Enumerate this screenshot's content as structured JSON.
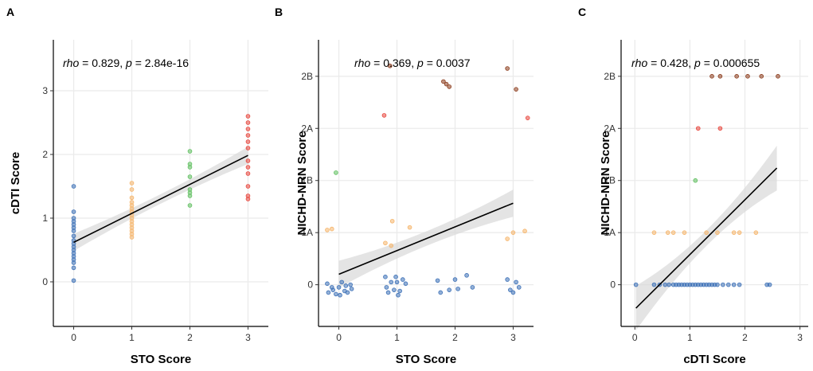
{
  "chart_data": [
    {
      "type": "scatter",
      "panel": "A",
      "xlabel": "STO Score",
      "ylabel": "cDTI Score",
      "xlim": [
        -0.35,
        3.35
      ],
      "ylim": [
        -0.7,
        3.8
      ],
      "xticks": [
        {
          "v": 0,
          "label": "0"
        },
        {
          "v": 1,
          "label": "1"
        },
        {
          "v": 2,
          "label": "2"
        },
        {
          "v": 3,
          "label": "3"
        }
      ],
      "yticks": [
        {
          "v": 0,
          "label": "0"
        },
        {
          "v": 1,
          "label": "1"
        },
        {
          "v": 2,
          "label": "2"
        },
        {
          "v": 3,
          "label": "3"
        }
      ],
      "annotation": {
        "rho_label": "rho",
        "rho_text": " = 0.829, ",
        "p_label": "p",
        "p_text": " = 2.84e-16"
      },
      "fit": {
        "intercept": 0.62,
        "slope": 0.455,
        "x_range": [
          0,
          3
        ],
        "ci_base": 0.075,
        "ci_spread": 0.06
      },
      "points": [
        {
          "x": 0,
          "y": 1.5,
          "c": "blue"
        },
        {
          "x": 0,
          "y": 1.1,
          "c": "blue"
        },
        {
          "x": 0,
          "y": 1.0,
          "c": "blue"
        },
        {
          "x": 0,
          "y": 0.95,
          "c": "blue"
        },
        {
          "x": 0,
          "y": 0.9,
          "c": "blue"
        },
        {
          "x": 0,
          "y": 0.85,
          "c": "blue"
        },
        {
          "x": 0,
          "y": 0.8,
          "c": "blue"
        },
        {
          "x": 0,
          "y": 0.72,
          "c": "blue"
        },
        {
          "x": 0,
          "y": 0.65,
          "c": "blue"
        },
        {
          "x": 0,
          "y": 0.6,
          "c": "blue"
        },
        {
          "x": 0,
          "y": 0.55,
          "c": "blue"
        },
        {
          "x": 0,
          "y": 0.5,
          "c": "blue"
        },
        {
          "x": 0,
          "y": 0.45,
          "c": "blue"
        },
        {
          "x": 0,
          "y": 0.4,
          "c": "blue"
        },
        {
          "x": 0,
          "y": 0.35,
          "c": "blue"
        },
        {
          "x": 0,
          "y": 0.3,
          "c": "blue"
        },
        {
          "x": 0,
          "y": 0.22,
          "c": "blue"
        },
        {
          "x": 0,
          "y": 0.02,
          "c": "blue"
        },
        {
          "x": 1,
          "y": 1.55,
          "c": "orange"
        },
        {
          "x": 1,
          "y": 1.45,
          "c": "orange"
        },
        {
          "x": 1,
          "y": 1.32,
          "c": "orange"
        },
        {
          "x": 1,
          "y": 1.25,
          "c": "orange"
        },
        {
          "x": 1,
          "y": 1.2,
          "c": "orange"
        },
        {
          "x": 1,
          "y": 1.15,
          "c": "orange"
        },
        {
          "x": 1,
          "y": 1.1,
          "c": "orange"
        },
        {
          "x": 1,
          "y": 1.05,
          "c": "orange"
        },
        {
          "x": 1,
          "y": 1.0,
          "c": "orange"
        },
        {
          "x": 1,
          "y": 0.95,
          "c": "orange"
        },
        {
          "x": 1,
          "y": 0.9,
          "c": "orange"
        },
        {
          "x": 1,
          "y": 0.85,
          "c": "orange"
        },
        {
          "x": 1,
          "y": 0.8,
          "c": "orange"
        },
        {
          "x": 1,
          "y": 0.75,
          "c": "orange"
        },
        {
          "x": 1,
          "y": 0.7,
          "c": "orange"
        },
        {
          "x": 2,
          "y": 2.05,
          "c": "green"
        },
        {
          "x": 2,
          "y": 1.85,
          "c": "green"
        },
        {
          "x": 2,
          "y": 1.8,
          "c": "green"
        },
        {
          "x": 2,
          "y": 1.65,
          "c": "green"
        },
        {
          "x": 2,
          "y": 1.45,
          "c": "green"
        },
        {
          "x": 2,
          "y": 1.4,
          "c": "green"
        },
        {
          "x": 2,
          "y": 1.35,
          "c": "green"
        },
        {
          "x": 2,
          "y": 1.2,
          "c": "green"
        },
        {
          "x": 3,
          "y": 2.6,
          "c": "red"
        },
        {
          "x": 3,
          "y": 2.5,
          "c": "red"
        },
        {
          "x": 3,
          "y": 2.4,
          "c": "red"
        },
        {
          "x": 3,
          "y": 2.3,
          "c": "red"
        },
        {
          "x": 3,
          "y": 2.2,
          "c": "red"
        },
        {
          "x": 3,
          "y": 2.1,
          "c": "red"
        },
        {
          "x": 3,
          "y": 1.9,
          "c": "red"
        },
        {
          "x": 3,
          "y": 1.8,
          "c": "red"
        },
        {
          "x": 3,
          "y": 1.7,
          "c": "red"
        },
        {
          "x": 3,
          "y": 1.5,
          "c": "red"
        },
        {
          "x": 3,
          "y": 1.35,
          "c": "red"
        },
        {
          "x": 3,
          "y": 1.3,
          "c": "red"
        }
      ]
    },
    {
      "type": "scatter",
      "panel": "B",
      "xlabel": "STO Score",
      "ylabel": "NICHD-NRN Score",
      "xlim": [
        -0.35,
        3.35
      ],
      "ylim": [
        -0.8,
        4.7
      ],
      "xticks": [
        {
          "v": 0,
          "label": "0"
        },
        {
          "v": 1,
          "label": "1"
        },
        {
          "v": 2,
          "label": "2"
        },
        {
          "v": 3,
          "label": "3"
        }
      ],
      "yticks": [
        {
          "v": 0,
          "label": "0"
        },
        {
          "v": 1,
          "label": "1A"
        },
        {
          "v": 2,
          "label": "1B"
        },
        {
          "v": 3,
          "label": "2A"
        },
        {
          "v": 4,
          "label": "2B"
        }
      ],
      "annotation": {
        "rho_label": "rho",
        "rho_text": " = 0.369, ",
        "p_label": "p",
        "p_text": " = 0.0037"
      },
      "fit": {
        "intercept": 0.2,
        "slope": 0.455,
        "x_range": [
          0,
          3
        ],
        "ci_base": 0.14,
        "ci_spread": 0.12
      },
      "points": [
        {
          "x": -0.2,
          "y": 0.02,
          "c": "blue"
        },
        {
          "x": -0.18,
          "y": -0.15,
          "c": "blue"
        },
        {
          "x": -0.12,
          "y": -0.05,
          "c": "blue"
        },
        {
          "x": -0.1,
          "y": -0.1,
          "c": "blue"
        },
        {
          "x": -0.05,
          "y": -0.18,
          "c": "blue"
        },
        {
          "x": 0,
          "y": -0.05,
          "c": "blue"
        },
        {
          "x": 0.02,
          "y": -0.2,
          "c": "blue"
        },
        {
          "x": 0.05,
          "y": 0.05,
          "c": "blue"
        },
        {
          "x": 0.1,
          "y": -0.12,
          "c": "blue"
        },
        {
          "x": 0.12,
          "y": -0.02,
          "c": "blue"
        },
        {
          "x": 0.15,
          "y": -0.15,
          "c": "blue"
        },
        {
          "x": 0.2,
          "y": 0.0,
          "c": "blue"
        },
        {
          "x": 0.22,
          "y": -0.08,
          "c": "blue"
        },
        {
          "x": 0.8,
          "y": 0.15,
          "c": "blue"
        },
        {
          "x": 0.82,
          "y": -0.05,
          "c": "blue"
        },
        {
          "x": 0.85,
          "y": -0.15,
          "c": "blue"
        },
        {
          "x": 0.9,
          "y": 0.05,
          "c": "blue"
        },
        {
          "x": 0.95,
          "y": -0.1,
          "c": "blue"
        },
        {
          "x": 0.98,
          "y": 0.15,
          "c": "blue"
        },
        {
          "x": 1.0,
          "y": 0.05,
          "c": "blue"
        },
        {
          "x": 1.02,
          "y": -0.2,
          "c": "blue"
        },
        {
          "x": 1.05,
          "y": -0.12,
          "c": "blue"
        },
        {
          "x": 1.1,
          "y": 0.1,
          "c": "blue"
        },
        {
          "x": 1.15,
          "y": 0.02,
          "c": "blue"
        },
        {
          "x": 1.7,
          "y": 0.08,
          "c": "blue"
        },
        {
          "x": 1.75,
          "y": -0.15,
          "c": "blue"
        },
        {
          "x": 1.9,
          "y": -0.1,
          "c": "blue"
        },
        {
          "x": 2.0,
          "y": 0.1,
          "c": "blue"
        },
        {
          "x": 2.05,
          "y": -0.08,
          "c": "blue"
        },
        {
          "x": 2.2,
          "y": 0.18,
          "c": "blue"
        },
        {
          "x": 2.3,
          "y": -0.05,
          "c": "blue"
        },
        {
          "x": 2.9,
          "y": 0.1,
          "c": "blue"
        },
        {
          "x": 2.95,
          "y": -0.1,
          "c": "blue"
        },
        {
          "x": 3.0,
          "y": -0.15,
          "c": "blue"
        },
        {
          "x": 3.05,
          "y": 0.05,
          "c": "blue"
        },
        {
          "x": 3.1,
          "y": -0.05,
          "c": "blue"
        },
        {
          "x": -0.2,
          "y": 1.05,
          "c": "orange"
        },
        {
          "x": -0.12,
          "y": 1.07,
          "c": "orange"
        },
        {
          "x": 0.8,
          "y": 0.8,
          "c": "orange"
        },
        {
          "x": 0.9,
          "y": 0.75,
          "c": "orange"
        },
        {
          "x": 0.92,
          "y": 1.22,
          "c": "orange"
        },
        {
          "x": 1.22,
          "y": 1.1,
          "c": "orange"
        },
        {
          "x": 2.9,
          "y": 0.88,
          "c": "orange"
        },
        {
          "x": 3.0,
          "y": 1.0,
          "c": "orange"
        },
        {
          "x": 3.2,
          "y": 1.03,
          "c": "orange"
        },
        {
          "x": -0.05,
          "y": 2.15,
          "c": "green"
        },
        {
          "x": 0.78,
          "y": 3.25,
          "c": "red"
        },
        {
          "x": 3.25,
          "y": 3.2,
          "c": "red"
        },
        {
          "x": 0.88,
          "y": 4.2,
          "c": "brown"
        },
        {
          "x": 1.8,
          "y": 3.9,
          "c": "brown"
        },
        {
          "x": 1.85,
          "y": 3.85,
          "c": "brown"
        },
        {
          "x": 1.9,
          "y": 3.8,
          "c": "brown"
        },
        {
          "x": 2.9,
          "y": 4.15,
          "c": "brown"
        },
        {
          "x": 3.05,
          "y": 3.75,
          "c": "brown"
        }
      ]
    },
    {
      "type": "scatter",
      "panel": "C",
      "xlabel": "cDTI Score",
      "ylabel": "NICHD-NRN Score",
      "xlim": [
        -0.25,
        3.15
      ],
      "ylim": [
        -0.8,
        4.7
      ],
      "xticks": [
        {
          "v": 0,
          "label": "0"
        },
        {
          "v": 1,
          "label": "1"
        },
        {
          "v": 2,
          "label": "2"
        },
        {
          "v": 3,
          "label": "3"
        }
      ],
      "yticks": [
        {
          "v": 0,
          "label": "0"
        },
        {
          "v": 1,
          "label": "1A"
        },
        {
          "v": 2,
          "label": "1B"
        },
        {
          "v": 3,
          "label": "2A"
        },
        {
          "v": 4,
          "label": "2B"
        }
      ],
      "annotation": {
        "rho_label": "rho",
        "rho_text": " = 0.428, ",
        "p_label": "p",
        "p_text": " = 0.000655"
      },
      "fit": {
        "intercept": -0.47,
        "slope": 1.05,
        "x_range": [
          0.02,
          2.58
        ],
        "ci_base": 0.15,
        "ci_spread": 0.28
      },
      "points": [
        {
          "x": 0.02,
          "y": 0,
          "c": "blue"
        },
        {
          "x": 0.35,
          "y": 0,
          "c": "blue"
        },
        {
          "x": 0.45,
          "y": 0,
          "c": "blue"
        },
        {
          "x": 0.55,
          "y": 0,
          "c": "blue"
        },
        {
          "x": 0.62,
          "y": 0,
          "c": "blue"
        },
        {
          "x": 0.7,
          "y": 0,
          "c": "blue"
        },
        {
          "x": 0.75,
          "y": 0,
          "c": "blue"
        },
        {
          "x": 0.8,
          "y": 0,
          "c": "blue"
        },
        {
          "x": 0.85,
          "y": 0,
          "c": "blue"
        },
        {
          "x": 0.9,
          "y": 0,
          "c": "blue"
        },
        {
          "x": 0.95,
          "y": 0,
          "c": "blue"
        },
        {
          "x": 1.0,
          "y": 0,
          "c": "blue"
        },
        {
          "x": 1.05,
          "y": 0,
          "c": "blue"
        },
        {
          "x": 1.1,
          "y": 0,
          "c": "blue"
        },
        {
          "x": 1.15,
          "y": 0,
          "c": "blue"
        },
        {
          "x": 1.2,
          "y": 0,
          "c": "blue"
        },
        {
          "x": 1.25,
          "y": 0,
          "c": "blue"
        },
        {
          "x": 1.3,
          "y": 0,
          "c": "blue"
        },
        {
          "x": 1.35,
          "y": 0,
          "c": "blue"
        },
        {
          "x": 1.4,
          "y": 0,
          "c": "blue"
        },
        {
          "x": 1.45,
          "y": 0,
          "c": "blue"
        },
        {
          "x": 1.5,
          "y": 0,
          "c": "blue"
        },
        {
          "x": 1.6,
          "y": 0,
          "c": "blue"
        },
        {
          "x": 1.7,
          "y": 0,
          "c": "blue"
        },
        {
          "x": 1.8,
          "y": 0,
          "c": "blue"
        },
        {
          "x": 1.9,
          "y": 0,
          "c": "blue"
        },
        {
          "x": 2.4,
          "y": 0,
          "c": "blue"
        },
        {
          "x": 2.45,
          "y": 0,
          "c": "blue"
        },
        {
          "x": 0.35,
          "y": 1,
          "c": "orange"
        },
        {
          "x": 0.6,
          "y": 1,
          "c": "orange"
        },
        {
          "x": 0.7,
          "y": 1,
          "c": "orange"
        },
        {
          "x": 0.9,
          "y": 1,
          "c": "orange"
        },
        {
          "x": 1.3,
          "y": 1,
          "c": "orange"
        },
        {
          "x": 1.5,
          "y": 1,
          "c": "orange"
        },
        {
          "x": 1.8,
          "y": 1,
          "c": "orange"
        },
        {
          "x": 1.9,
          "y": 1,
          "c": "orange"
        },
        {
          "x": 2.2,
          "y": 1,
          "c": "orange"
        },
        {
          "x": 1.1,
          "y": 2,
          "c": "green"
        },
        {
          "x": 1.15,
          "y": 3,
          "c": "red"
        },
        {
          "x": 1.55,
          "y": 3,
          "c": "red"
        },
        {
          "x": 1.4,
          "y": 4,
          "c": "brown"
        },
        {
          "x": 1.55,
          "y": 4,
          "c": "brown"
        },
        {
          "x": 1.85,
          "y": 4,
          "c": "brown"
        },
        {
          "x": 2.05,
          "y": 4,
          "c": "brown"
        },
        {
          "x": 2.3,
          "y": 4,
          "c": "brown"
        },
        {
          "x": 2.6,
          "y": 4,
          "c": "brown"
        }
      ]
    }
  ],
  "colors": {
    "blue": "#3b6fb6",
    "orange": "#f5b469",
    "green": "#5fbf5f",
    "red": "#e8453c",
    "brown": "#8b3a1a",
    "grid": "#ebebeb",
    "ci_band": "#d9d9d9",
    "fit_line": "#000000"
  }
}
